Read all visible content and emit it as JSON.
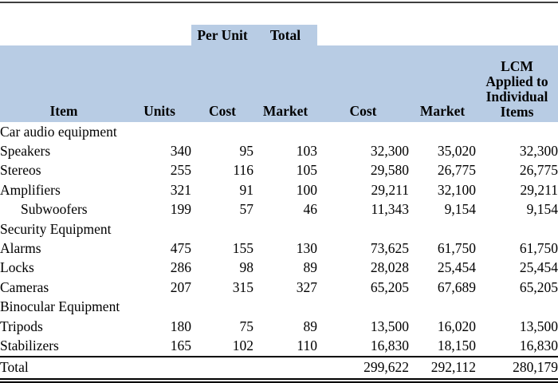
{
  "colors": {
    "header_fill": "#b8cce4",
    "rule_color": "#3f3f3f",
    "text_color": "#000000"
  },
  "table": {
    "band": {
      "per_unit_label": "Per Unit",
      "total_label": "Total"
    },
    "header": {
      "item": "Item",
      "units": "Units",
      "cost_per_unit": "Cost",
      "market_per_unit": "Market",
      "cost_total": "Cost",
      "market_total": "Market",
      "lcm_lines": [
        "LCM",
        "Applied to",
        "Individual",
        "Items"
      ]
    },
    "rows": [
      {
        "item": "Car audio equipment",
        "type": "section",
        "indent": false,
        "values": [
          "",
          "",
          "",
          "",
          "",
          ""
        ]
      },
      {
        "item": "Speakers",
        "type": "data",
        "indent": false,
        "values": [
          "340",
          "95",
          "103",
          "32,300",
          "35,020",
          "32,300"
        ]
      },
      {
        "item": "Stereos",
        "type": "data",
        "indent": false,
        "values": [
          "255",
          "116",
          "105",
          "29,580",
          "26,775",
          "26,775"
        ]
      },
      {
        "item": "Amplifiers",
        "type": "data",
        "indent": false,
        "values": [
          "321",
          "91",
          "100",
          "29,211",
          "32,100",
          "29,211"
        ]
      },
      {
        "item": "Subwoofers",
        "type": "data",
        "indent": true,
        "values": [
          "199",
          "57",
          "46",
          "11,343",
          "9,154",
          "9,154"
        ]
      },
      {
        "item": "Security Equipment",
        "type": "section",
        "indent": false,
        "values": [
          "",
          "",
          "",
          "",
          "",
          ""
        ]
      },
      {
        "item": "Alarms",
        "type": "data",
        "indent": false,
        "values": [
          "475",
          "155",
          "130",
          "73,625",
          "61,750",
          "61,750"
        ]
      },
      {
        "item": "Locks",
        "type": "data",
        "indent": false,
        "values": [
          "286",
          "98",
          "89",
          "28,028",
          "25,454",
          "25,454"
        ]
      },
      {
        "item": "Cameras",
        "type": "data",
        "indent": false,
        "values": [
          "207",
          "315",
          "327",
          "65,205",
          "67,689",
          "65,205"
        ]
      },
      {
        "item": "Binocular Equipment",
        "type": "section",
        "indent": false,
        "values": [
          "",
          "",
          "",
          "",
          "",
          ""
        ]
      },
      {
        "item": "Tripods",
        "type": "data",
        "indent": false,
        "values": [
          "180",
          "75",
          "89",
          "13,500",
          "16,020",
          "13,500"
        ]
      },
      {
        "item": "Stabilizers",
        "type": "data",
        "indent": false,
        "values": [
          "165",
          "102",
          "110",
          "16,830",
          "18,150",
          "16,830"
        ]
      }
    ],
    "total_row": {
      "item": "Total",
      "values": [
        "",
        "",
        "",
        "299,622",
        "292,112",
        "280,179"
      ]
    }
  }
}
